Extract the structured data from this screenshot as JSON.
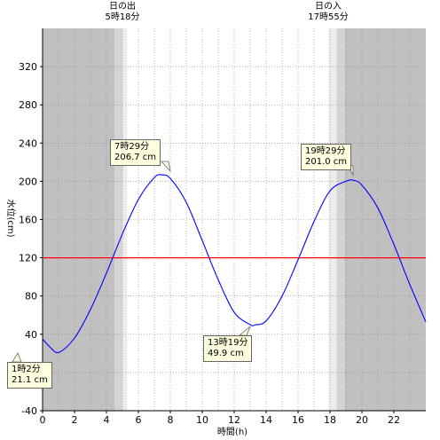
{
  "chart_data": {
    "type": "line",
    "xlabel": "時間(h)",
    "ylabel": "水位(cm)",
    "xlim": [
      0,
      24
    ],
    "ylim": [
      -40,
      360
    ],
    "xticks": [
      0,
      2,
      4,
      6,
      8,
      10,
      12,
      14,
      16,
      18,
      20,
      22
    ],
    "yticks": [
      -40,
      0,
      40,
      80,
      120,
      160,
      200,
      240,
      280,
      320
    ],
    "grid": true,
    "reference_line": {
      "y": 120,
      "color": "#ff0000"
    },
    "sunrise": {
      "label": "日の出",
      "time": "5時18分",
      "hour": 5.3
    },
    "sunset": {
      "label": "日の入",
      "time": "17時55分",
      "hour": 17.92
    },
    "series": [
      {
        "color": "#0000ff",
        "x": [
          0,
          0.5,
          1.03,
          2,
          3,
          4,
          5,
          6,
          7,
          7.48,
          8,
          9,
          10,
          11,
          12,
          13,
          13.32,
          14,
          15,
          16,
          17,
          18,
          19,
          19.48,
          20,
          21,
          22,
          23,
          24
        ],
        "y": [
          35,
          26,
          21.1,
          36,
          66,
          104,
          145,
          181,
          204,
          206.7,
          203,
          178,
          138,
          97,
          63,
          50,
          49.9,
          54,
          80,
          118,
          158,
          190,
          200,
          201.0,
          196,
          172,
          134,
          92,
          53
        ]
      }
    ],
    "annotations": [
      {
        "time": "1時2分",
        "value": "21.1 cm",
        "x": 1.03,
        "y": 21.1
      },
      {
        "time": "7時29分",
        "value": "206.7 cm",
        "x": 7.48,
        "y": 206.7
      },
      {
        "time": "13時19分",
        "value": "49.9 cm",
        "x": 13.32,
        "y": 49.9
      },
      {
        "time": "19時29分",
        "value": "201.0 cm",
        "x": 19.48,
        "y": 201.0
      }
    ]
  },
  "colors": {
    "night": "#c0c0c0",
    "twilight_dark": "#d4d4d4",
    "twilight_light": "#ececec",
    "day": "#ffffff",
    "curve": "#0000ff",
    "reference": "#ff0000",
    "note_bg": "#ffffe0"
  }
}
